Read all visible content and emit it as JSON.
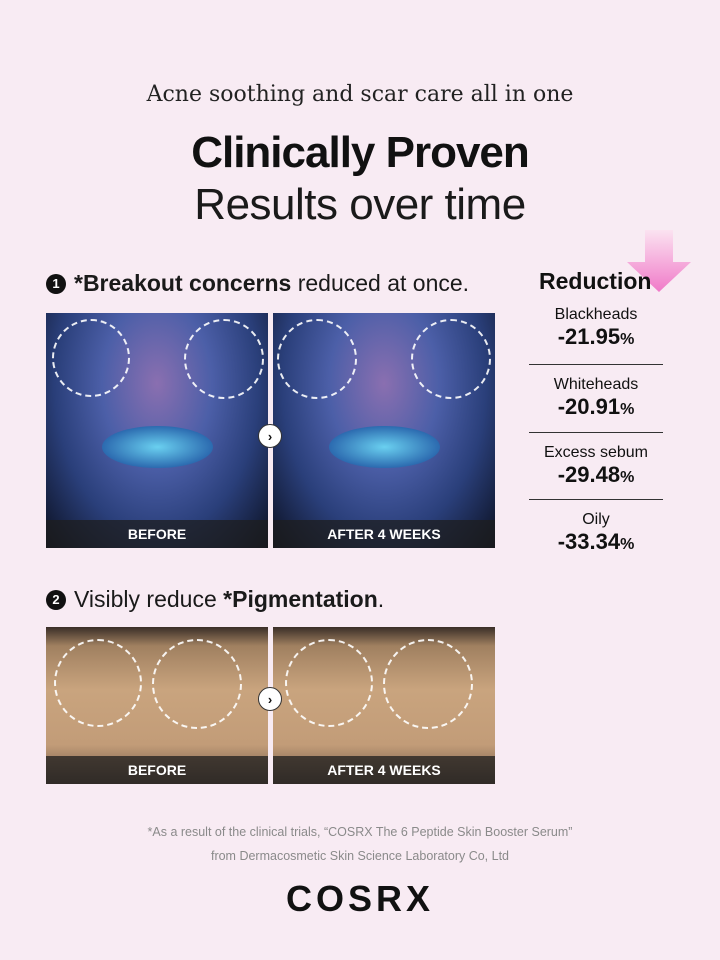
{
  "header": {
    "tagline": "Acne soothing and scar care all in one",
    "title_bold": "Clinically Proven",
    "title_regular": "Results over time"
  },
  "section1": {
    "number": "1",
    "bold": "*Breakout concerns",
    "rest": " reduced at once.",
    "before_label": "BEFORE",
    "after_label": "AFTER 4 WEEKS"
  },
  "section2": {
    "number": "2",
    "lead": "Visibly reduce ",
    "bold": "*Pigmentation",
    "end": ".",
    "before_label": "BEFORE",
    "after_label": "AFTER 4 WEEKS"
  },
  "reduction": {
    "title": "Reduction",
    "arrow_color": "#f07ac8",
    "stats": [
      {
        "name": "Blackheads",
        "value": "-21.95",
        "unit": "%"
      },
      {
        "name": "Whiteheads",
        "value": "-20.91",
        "unit": "%"
      },
      {
        "name": "Excess sebum",
        "value": "-29.48",
        "unit": "%"
      },
      {
        "name": "Oily",
        "value": "-33.34",
        "unit": "%"
      }
    ]
  },
  "footnote": {
    "line1": "*As a result of the clinical trials, “COSRX The 6 Peptide Skin Booster Serum”",
    "line2": "from Dermacosmetic Skin Science Laboratory Co, Ltd"
  },
  "brand": {
    "logo": "COSRX"
  },
  "icons": {
    "next": "chevron-right-icon"
  }
}
